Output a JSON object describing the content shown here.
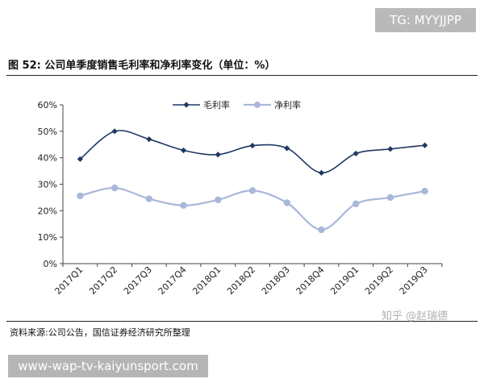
{
  "header": {
    "badge": "TG: MYYJJPP"
  },
  "figure": {
    "title": "图 52: 公司单季度销售毛利率和净利率变化（单位：%）"
  },
  "footer": {
    "source": "资料来源:公司公告，国信证券经济研究所整理",
    "watermark": "知乎 @赵瑞德",
    "site": "www-wap-tv-kaiyunsport.com"
  },
  "chart_data": {
    "type": "line",
    "categories": [
      "2017Q1",
      "2017Q2",
      "2017Q3",
      "2017Q4",
      "2018Q1",
      "2018Q2",
      "2018Q3",
      "2018Q4",
      "2019Q1",
      "2019Q2",
      "2019Q3"
    ],
    "y_ticks": [
      "0%",
      "10%",
      "20%",
      "30%",
      "40%",
      "50%",
      "60%"
    ],
    "ylim": [
      0,
      60
    ],
    "legend_position": "top-center",
    "series": [
      {
        "name": "毛利率",
        "color": "#1f3864",
        "marker": "diamond",
        "values": [
          39.5,
          50.0,
          47.0,
          42.8,
          41.2,
          44.6,
          43.6,
          34.3,
          41.6,
          43.3,
          44.7
        ]
      },
      {
        "name": "净利率",
        "color": "#a9b7d9",
        "marker": "circle",
        "values": [
          25.6,
          28.6,
          24.5,
          22.0,
          24.1,
          27.6,
          23.0,
          12.8,
          22.6,
          25.0,
          27.4
        ]
      }
    ]
  }
}
